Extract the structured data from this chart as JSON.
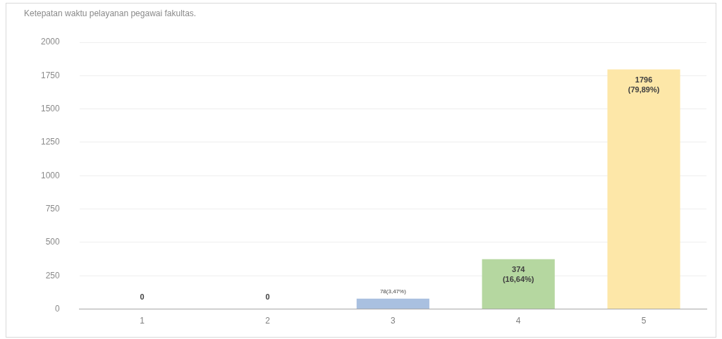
{
  "chart_data": {
    "type": "bar",
    "title": "Ketepatan waktu pelayanan pegawai fakultas.",
    "categories": [
      "1",
      "2",
      "3",
      "4",
      "5"
    ],
    "values": [
      0,
      0,
      78,
      374,
      1796
    ],
    "colors": [
      "#a9c0e0",
      "#a9c0e0",
      "#a9c0e0",
      "#b5d7a0",
      "#fde7a8"
    ],
    "value_labels": [
      "0",
      "0",
      "78(3,47%)",
      "374 (16,64%)",
      "1796 (79,89%)"
    ],
    "ylim": [
      0,
      2000
    ],
    "yticks": [
      0,
      250,
      500,
      750,
      1000,
      1250,
      1500,
      1750,
      2000
    ],
    "grid": "y",
    "legend": false
  }
}
